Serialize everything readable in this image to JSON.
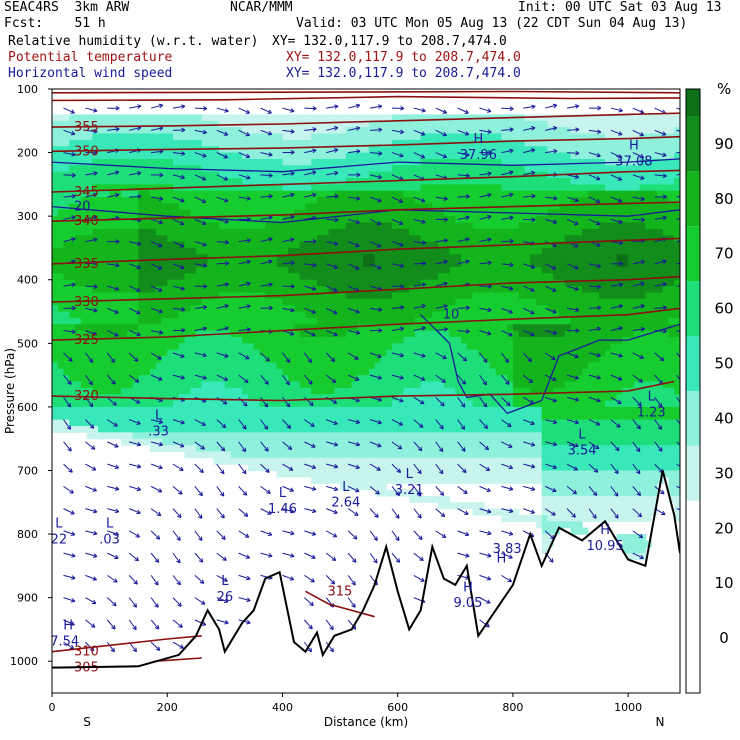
{
  "header": {
    "model": "SEAC4RS  3km ARW",
    "org": "NCAR/MMM",
    "init": "Init: 00 UTC Sat 03 Aug 13",
    "fcst": "Fcst:    51 h",
    "valid": "Valid: 03 UTC Mon 05 Aug 13 (22 CDT Sun 04 Aug 13)",
    "fields": [
      {
        "name": "Relative humidity (w.r.t. water)",
        "xy": "XY= 132.0,117.9 to 208.7,474.0",
        "color": "#000000"
      },
      {
        "name": "Potential temperature",
        "xy": "XY= 132.0,117.9 to 208.7,474.0",
        "color": "#a01414"
      },
      {
        "name": "Horizontal wind speed",
        "xy": "XY= 132.0,117.9 to 208.7,474.0",
        "color": "#1a1a9a"
      }
    ]
  },
  "chart_data": {
    "type": "heatmap",
    "xlabel": "Distance (km)",
    "ylabel": "Pressure (hPa)",
    "xlim": [
      0,
      1090
    ],
    "ylim": [
      100,
      1050
    ],
    "x_ticks": [
      0,
      200,
      400,
      600,
      800,
      1000
    ],
    "y_ticks": [
      100,
      200,
      300,
      400,
      500,
      600,
      700,
      800,
      900,
      1000
    ],
    "x_end_labels": {
      "left": "S",
      "right": "N"
    },
    "colorbar": {
      "unit": "%",
      "ticks": [
        0,
        10,
        20,
        30,
        40,
        50,
        60,
        70,
        80,
        90
      ],
      "bands": [
        {
          "from": -10,
          "to": 5,
          "color": "#ffffff"
        },
        {
          "from": 5,
          "to": 15,
          "color": "#ffffff"
        },
        {
          "from": 15,
          "to": 25,
          "color": "#ffffff"
        },
        {
          "from": 25,
          "to": 35,
          "color": "#c8f4ee"
        },
        {
          "from": 35,
          "to": 45,
          "color": "#8ff0dc"
        },
        {
          "from": 45,
          "to": 55,
          "color": "#38e8b8"
        },
        {
          "from": 55,
          "to": 65,
          "color": "#1ede7a"
        },
        {
          "from": 65,
          "to": 75,
          "color": "#16cc2e"
        },
        {
          "from": 75,
          "to": 85,
          "color": "#14b51c"
        },
        {
          "from": 85,
          "to": 95,
          "color": "#128c1a"
        },
        {
          "from": 95,
          "to": 100,
          "color": "#0e7016"
        }
      ]
    },
    "theta_contours": [
      {
        "label": "305",
        "points": [
          [
            0,
            1010
          ],
          [
            150,
            1008
          ],
          [
            180,
            1000
          ],
          [
            260,
            995
          ]
        ]
      },
      {
        "label": "310",
        "points": [
          [
            0,
            985
          ],
          [
            100,
            975
          ],
          [
            200,
            965
          ],
          [
            260,
            960
          ]
        ]
      },
      {
        "label": "315",
        "points": [
          [
            440,
            890
          ],
          [
            480,
            910
          ],
          [
            560,
            930
          ]
        ]
      },
      {
        "label": "320",
        "points": [
          [
            0,
            583
          ],
          [
            200,
            587
          ],
          [
            400,
            590
          ],
          [
            600,
            583
          ],
          [
            800,
            580
          ],
          [
            1000,
            575
          ],
          [
            1080,
            560
          ]
        ]
      },
      {
        "label": "325",
        "points": [
          [
            0,
            495
          ],
          [
            200,
            490
          ],
          [
            400,
            480
          ],
          [
            600,
            470
          ],
          [
            800,
            462
          ],
          [
            1000,
            455
          ],
          [
            1090,
            445
          ]
        ]
      },
      {
        "label": "330",
        "points": [
          [
            0,
            435
          ],
          [
            200,
            430
          ],
          [
            400,
            425
          ],
          [
            600,
            415
          ],
          [
            800,
            405
          ],
          [
            1000,
            400
          ],
          [
            1090,
            395
          ]
        ]
      },
      {
        "label": "335",
        "points": [
          [
            0,
            375
          ],
          [
            200,
            368
          ],
          [
            400,
            362
          ],
          [
            600,
            352
          ],
          [
            800,
            345
          ],
          [
            1000,
            338
          ],
          [
            1090,
            335
          ]
        ]
      },
      {
        "label": "340",
        "points": [
          [
            0,
            308
          ],
          [
            200,
            303
          ],
          [
            400,
            298
          ],
          [
            600,
            290
          ],
          [
            800,
            285
          ],
          [
            1000,
            280
          ],
          [
            1090,
            278
          ]
        ]
      },
      {
        "label": "345",
        "points": [
          [
            0,
            262
          ],
          [
            200,
            256
          ],
          [
            400,
            250
          ],
          [
            600,
            244
          ],
          [
            800,
            238
          ],
          [
            1000,
            230
          ],
          [
            1090,
            228
          ]
        ]
      },
      {
        "label": "350",
        "points": [
          [
            0,
            198
          ],
          [
            200,
            195
          ],
          [
            400,
            193
          ],
          [
            600,
            188
          ],
          [
            800,
            182
          ],
          [
            1000,
            178
          ],
          [
            1090,
            175
          ]
        ]
      },
      {
        "label": "355",
        "points": [
          [
            0,
            160
          ],
          [
            200,
            158
          ],
          [
            400,
            155
          ],
          [
            600,
            150
          ],
          [
            800,
            145
          ],
          [
            1000,
            140
          ],
          [
            1090,
            138
          ]
        ]
      },
      {
        "label": "",
        "points": [
          [
            0,
            118
          ],
          [
            300,
            117
          ],
          [
            600,
            112
          ],
          [
            900,
            115
          ],
          [
            1090,
            114
          ]
        ]
      },
      {
        "label": "",
        "points": [
          [
            0,
            106
          ],
          [
            400,
            105
          ],
          [
            800,
            104
          ],
          [
            1090,
            106
          ]
        ]
      }
    ],
    "speed_contours": [
      {
        "label": "10",
        "points": [
          [
            640,
            455
          ],
          [
            690,
            500
          ],
          [
            705,
            560
          ],
          [
            720,
            585
          ],
          [
            760,
            580
          ],
          [
            790,
            610
          ],
          [
            850,
            590
          ],
          [
            880,
            520
          ],
          [
            950,
            495
          ],
          [
            1000,
            495
          ],
          [
            1090,
            470
          ]
        ]
      },
      {
        "label": "20",
        "points": [
          [
            0,
            285
          ],
          [
            200,
            300
          ],
          [
            400,
            310
          ],
          [
            600,
            290
          ],
          [
            800,
            295
          ],
          [
            1000,
            300
          ],
          [
            1090,
            290
          ]
        ]
      },
      {
        "label": "",
        "points": [
          [
            0,
            215
          ],
          [
            200,
            225
          ],
          [
            400,
            230
          ],
          [
            600,
            215
          ],
          [
            800,
            220
          ],
          [
            1000,
            215
          ],
          [
            1090,
            210
          ]
        ]
      }
    ],
    "terrain_profile": [
      [
        0,
        1010
      ],
      [
        150,
        1008
      ],
      [
        220,
        990
      ],
      [
        250,
        960
      ],
      [
        270,
        920
      ],
      [
        290,
        950
      ],
      [
        300,
        985
      ],
      [
        330,
        940
      ],
      [
        350,
        920
      ],
      [
        370,
        870
      ],
      [
        395,
        860
      ],
      [
        420,
        970
      ],
      [
        440,
        985
      ],
      [
        460,
        955
      ],
      [
        470,
        990
      ],
      [
        490,
        960
      ],
      [
        520,
        950
      ],
      [
        540,
        920
      ],
      [
        560,
        880
      ],
      [
        580,
        820
      ],
      [
        600,
        890
      ],
      [
        620,
        950
      ],
      [
        640,
        920
      ],
      [
        660,
        820
      ],
      [
        680,
        870
      ],
      [
        700,
        880
      ],
      [
        720,
        850
      ],
      [
        740,
        960
      ],
      [
        770,
        920
      ],
      [
        800,
        880
      ],
      [
        830,
        800
      ],
      [
        850,
        850
      ],
      [
        880,
        790
      ],
      [
        920,
        810
      ],
      [
        960,
        780
      ],
      [
        1000,
        840
      ],
      [
        1030,
        850
      ],
      [
        1060,
        700
      ],
      [
        1080,
        770
      ],
      [
        1090,
        830
      ]
    ],
    "annotations": [
      {
        "text": "L",
        "x": 12,
        "p": 790
      },
      {
        "text": "22",
        "x": 12,
        "p": 815
      },
      {
        "text": "L",
        "x": 100,
        "p": 790
      },
      {
        "text": ".03",
        "x": 100,
        "p": 815
      },
      {
        "text": "H",
        "x": 28,
        "p": 950
      },
      {
        "text": "7.54",
        "x": 22,
        "p": 975
      },
      {
        "text": "L",
        "x": 185,
        "p": 620
      },
      {
        "text": ".33",
        "x": 185,
        "p": 645
      },
      {
        "text": "L",
        "x": 300,
        "p": 880
      },
      {
        "text": "26",
        "x": 300,
        "p": 905
      },
      {
        "text": "L",
        "x": 400,
        "p": 742
      },
      {
        "text": "1.46",
        "x": 400,
        "p": 767
      },
      {
        "text": "L",
        "x": 510,
        "p": 732
      },
      {
        "text": "2.64",
        "x": 510,
        "p": 757
      },
      {
        "text": "L",
        "x": 620,
        "p": 712
      },
      {
        "text": "3.21",
        "x": 620,
        "p": 737
      },
      {
        "text": "H",
        "x": 722,
        "p": 890
      },
      {
        "text": "9.05",
        "x": 722,
        "p": 915
      },
      {
        "text": "H",
        "x": 780,
        "p": 845
      },
      {
        "text": "3.83",
        "x": 790,
        "p": 830
      },
      {
        "text": "L",
        "x": 920,
        "p": 650
      },
      {
        "text": "3.54",
        "x": 920,
        "p": 675
      },
      {
        "text": "H",
        "x": 960,
        "p": 800
      },
      {
        "text": "10.95",
        "x": 960,
        "p": 825
      },
      {
        "text": "L",
        "x": 1040,
        "p": 590
      },
      {
        "text": "1.23",
        "x": 1040,
        "p": 615
      },
      {
        "text": "H",
        "x": 740,
        "p": 185
      },
      {
        "text": "37.96",
        "x": 740,
        "p": 210
      },
      {
        "text": "H",
        "x": 1010,
        "p": 195
      },
      {
        "text": "37.08",
        "x": 1010,
        "p": 220
      }
    ]
  }
}
